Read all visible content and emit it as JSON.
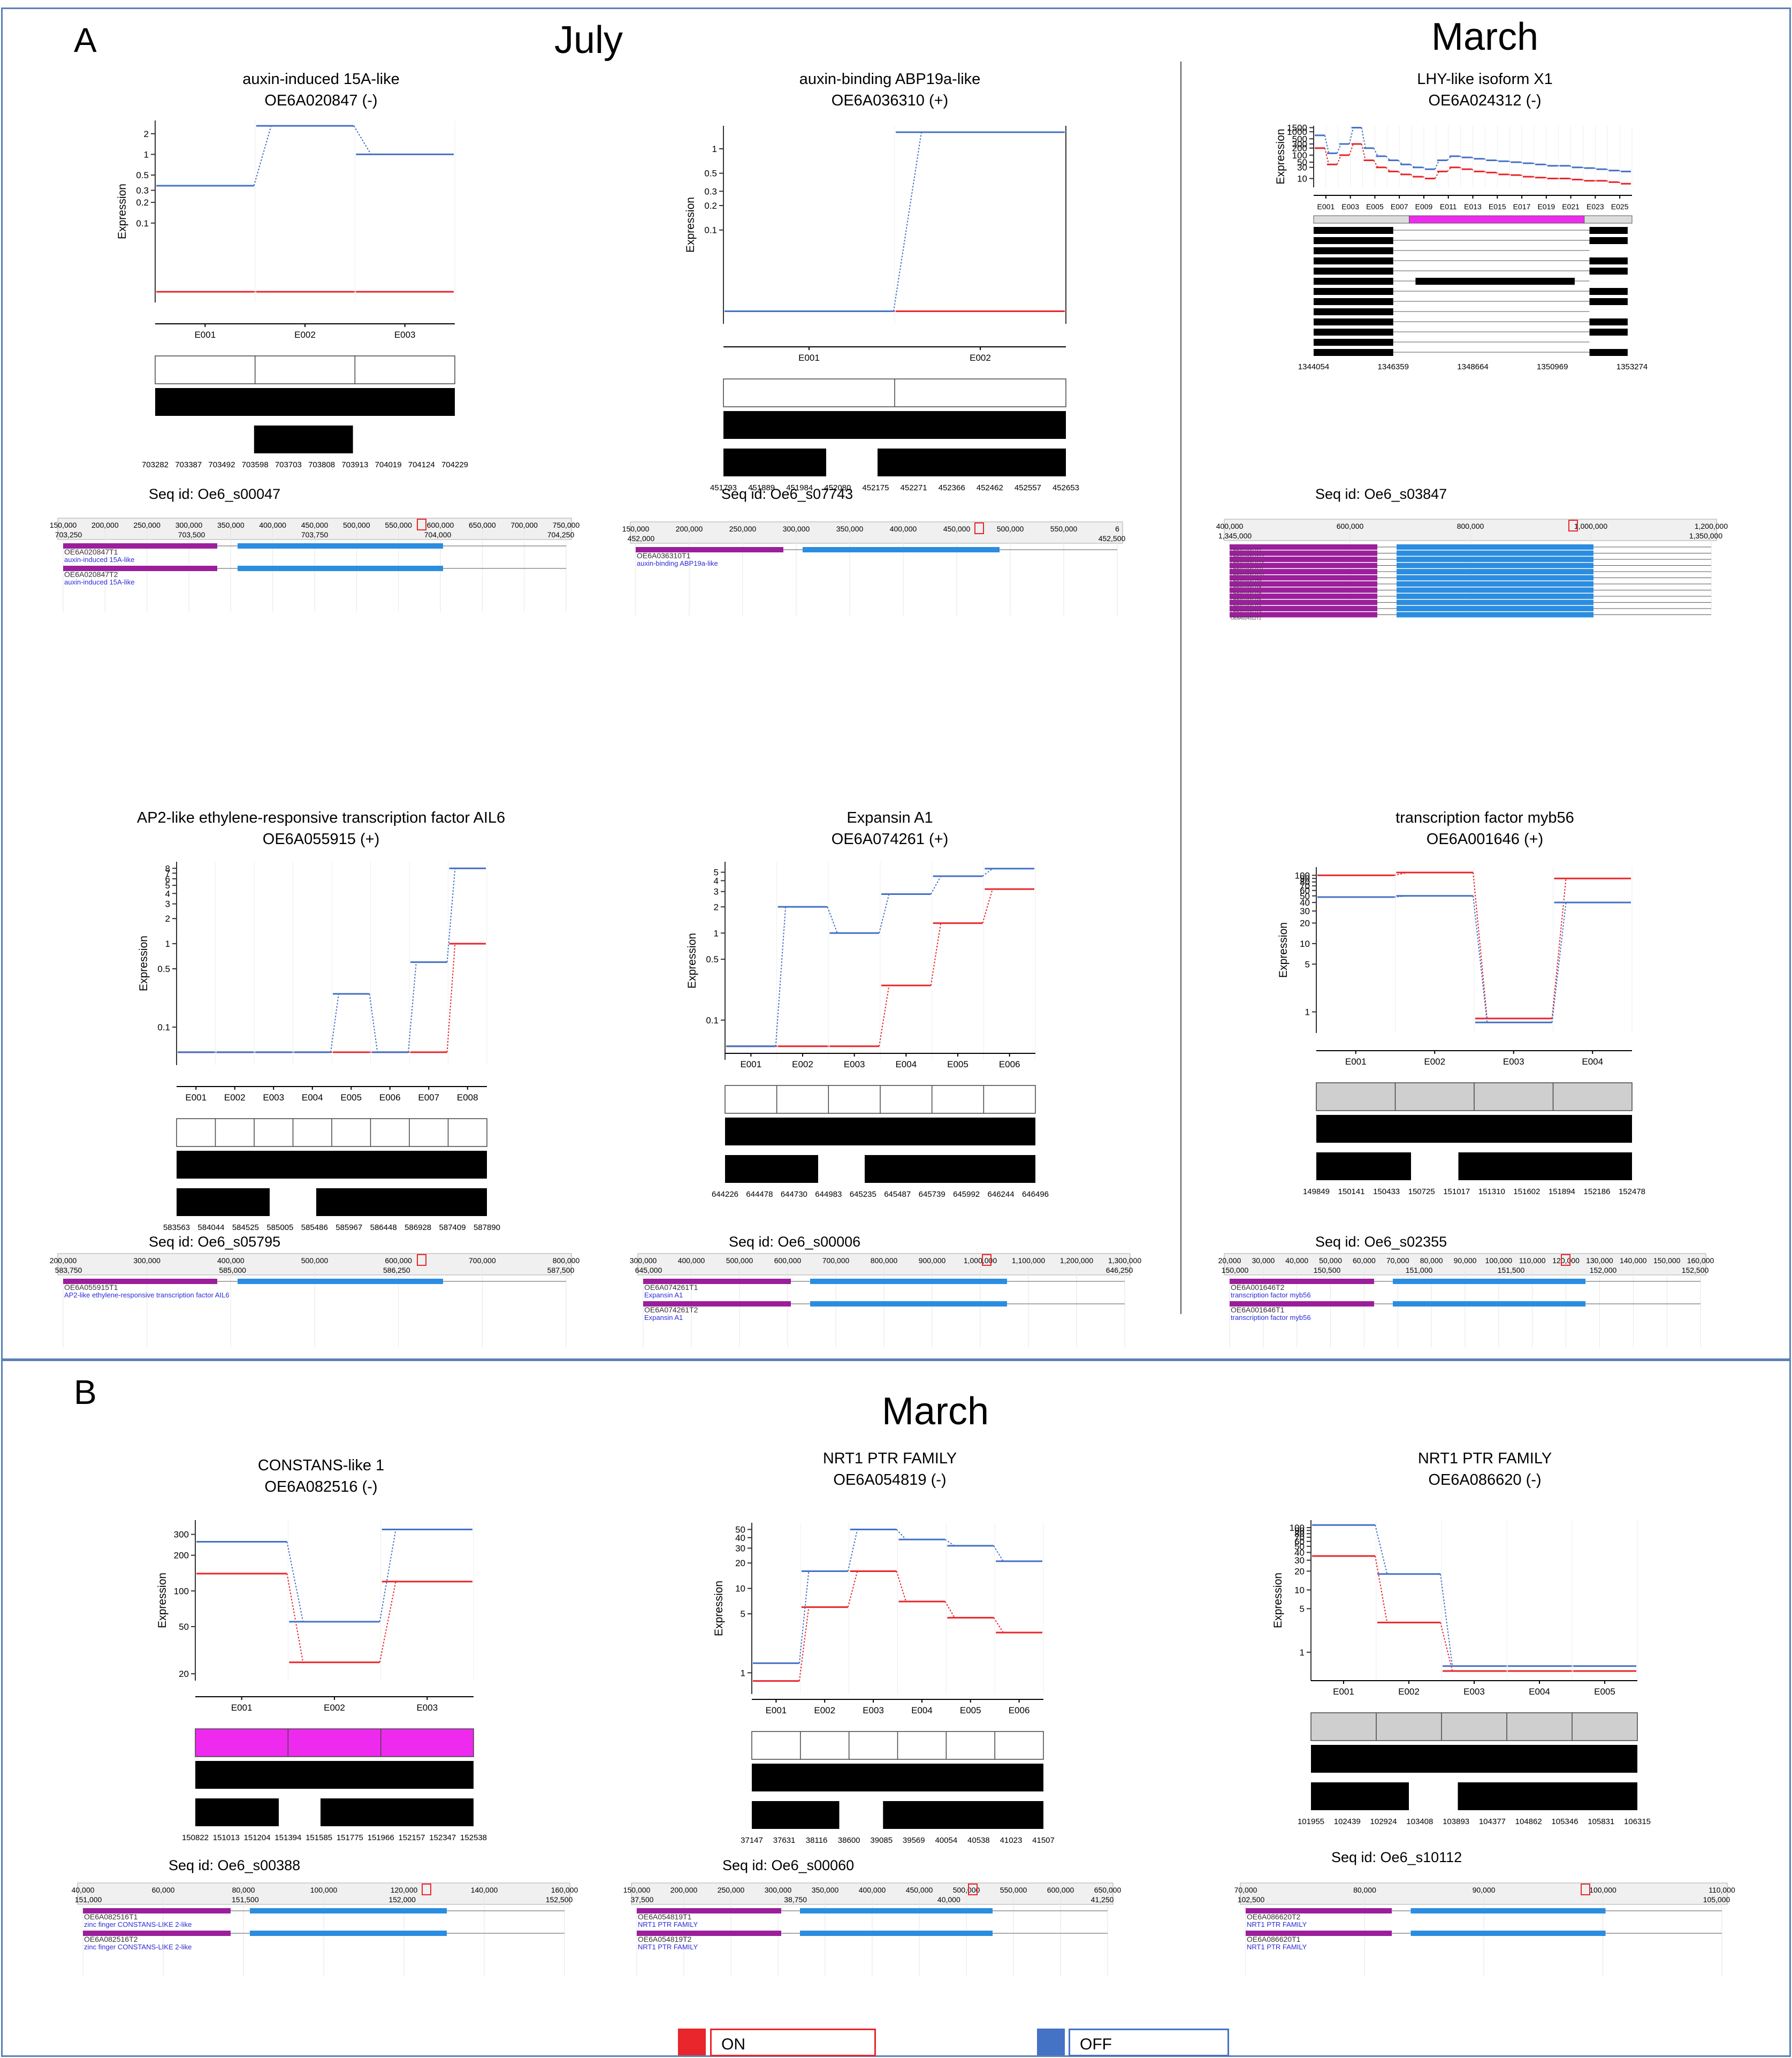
{
  "panel_a": {
    "letter": "A",
    "titles": {
      "july": "July",
      "march": "March"
    },
    "genes": [
      {
        "name": "auxin-induced 15A-like",
        "id": "OE6A020847 (-)",
        "seq": "Seq id: Oe6_s00047",
        "ticks": [
          "2",
          "1",
          "0.5",
          "0.3",
          "0.2",
          "0.1"
        ],
        "exons": [
          "E001",
          "E002",
          "E003"
        ],
        "coords": [
          "703282",
          "703387",
          "703492",
          "703598",
          "703703",
          "703808",
          "703913",
          "704019",
          "704124",
          "704229"
        ],
        "browser_ruler": [
          "150,000",
          "200,000",
          "250,000",
          "300,000",
          "350,000",
          "400,000",
          "450,000",
          "500,000",
          "550,000",
          "600,000",
          "650,000",
          "700,000",
          "750,000"
        ],
        "browser_sub": [
          "703,250",
          "703,500",
          "703,750",
          "704,000",
          "704,250"
        ],
        "tracks": [
          {
            "name": "OE6A020847T1",
            "desc": "auxin-induced 15A-like"
          },
          {
            "name": "OE6A020847T2",
            "desc": "auxin-induced 15A-like"
          }
        ]
      },
      {
        "name": "auxin-binding ABP19a-like",
        "id": "OE6A036310 (+)",
        "seq": "Seq id: Oe6_s07743",
        "ticks": [
          "1",
          "0.5",
          "0.3",
          "0.2",
          "0.1"
        ],
        "exons": [
          "E001",
          "E002"
        ],
        "coords": [
          "451793",
          "451889",
          "451984",
          "452080",
          "452175",
          "452271",
          "452366",
          "452462",
          "452557",
          "452653"
        ],
        "browser_ruler": [
          "150,000",
          "200,000",
          "250,000",
          "300,000",
          "350,000",
          "400,000",
          "450,000",
          "500,000",
          "550,000",
          "6"
        ],
        "browser_sub": [
          "452,000",
          "452,500"
        ],
        "tracks": [
          {
            "name": "OE6A036310T1",
            "desc": "auxin-binding ABP19a-like"
          }
        ]
      },
      {
        "name": "LHY-like isoform X1",
        "id": "OE6A024312 (-)",
        "seq": "Seq id: Oe6_s03847",
        "ticks": [
          "1500",
          "1000",
          "500",
          "300",
          "200",
          "100",
          "50",
          "30",
          "10"
        ],
        "exons": [
          "E001",
          "E003",
          "E005",
          "E007",
          "E009",
          "E011",
          "E013",
          "E015",
          "E017",
          "E019",
          "E021",
          "E023",
          "E025"
        ],
        "coords": [
          "1344054",
          "1346359",
          "1348664",
          "1350969",
          "1353274"
        ],
        "browser_ruler": [
          "400,000",
          "600,000",
          "800,000",
          "1,000,000",
          "1,200,000"
        ],
        "browser_sub": [
          "1,345,000",
          "1,350,000"
        ],
        "tracks": [
          {
            "name": "OE6A024312T1",
            "desc": "LHY-like isoform X1"
          },
          {
            "name": "OE6A024312T12",
            "desc": ""
          },
          {
            "name": "OE6A024312T13",
            "desc": "LHY-like isoform X1"
          },
          {
            "name": "OE6A024312T11",
            "desc": "LHY-like isoform X1"
          },
          {
            "name": "OE6A024312T10",
            "desc": "LHY-like isoform X1"
          },
          {
            "name": "OE6A024312T9",
            "desc": ""
          },
          {
            "name": "OE6A024312T8",
            "desc": ""
          },
          {
            "name": "OE6A024312T6",
            "desc": ""
          },
          {
            "name": "OE6A024312T5",
            "desc": ""
          },
          {
            "name": "OE6A024312T4",
            "desc": ""
          },
          {
            "name": "OE6A024312T3",
            "desc": ""
          },
          {
            "name": "OE6A024312T2",
            "desc": "LHY-like isoform X1"
          }
        ]
      },
      {
        "name": "AP2-like ethylene-responsive transcription factor AIL6",
        "id": "OE6A055915 (+)",
        "seq": "Seq id: Oe6_s05795",
        "ticks": [
          "8",
          "7",
          "6",
          "5",
          "4",
          "3",
          "2",
          "1",
          "0.5",
          "0.1"
        ],
        "exons": [
          "E001",
          "E002",
          "E003",
          "E004",
          "E005",
          "E006",
          "E007",
          "E008"
        ],
        "coords": [
          "583563",
          "584044",
          "584525",
          "585005",
          "585486",
          "585967",
          "586448",
          "586928",
          "587409",
          "587890"
        ],
        "browser_ruler": [
          "200,000",
          "300,000",
          "400,000",
          "500,000",
          "600,000",
          "700,000",
          "800,000"
        ],
        "browser_sub": [
          "583,750",
          "585,000",
          "586,250",
          "587,500"
        ],
        "tracks": [
          {
            "name": "OE6A055915T1",
            "desc": "AP2-like ethylene-responsive transcription factor AIL6"
          }
        ]
      },
      {
        "name": "Expansin A1",
        "id": "OE6A074261 (+)",
        "seq": "Seq id: Oe6_s00006",
        "ticks": [
          "5",
          "4",
          "3",
          "2",
          "1",
          "0.5",
          "0.1"
        ],
        "exons": [
          "E001",
          "E002",
          "E003",
          "E004",
          "E005",
          "E006"
        ],
        "coords": [
          "644226",
          "644478",
          "644730",
          "644983",
          "645235",
          "645487",
          "645739",
          "645992",
          "646244",
          "646496"
        ],
        "browser_ruler": [
          "300,000",
          "400,000",
          "500,000",
          "600,000",
          "700,000",
          "800,000",
          "900,000",
          "1,000,000",
          "1,100,000",
          "1,200,000",
          "1,300,000"
        ],
        "browser_sub": [
          "645,000",
          "646,250"
        ],
        "tracks": [
          {
            "name": "OE6A074261T1",
            "desc": "Expansin A1"
          },
          {
            "name": "OE6A074261T2",
            "desc": "Expansin A1"
          }
        ]
      },
      {
        "name": "transcription factor myb56",
        "id": "OE6A001646 (+)",
        "seq": "Seq id: Oe6_s02355",
        "ticks": [
          "100",
          "90",
          "80",
          "70",
          "60",
          "50",
          "40",
          "30",
          "20",
          "10",
          "5",
          "1"
        ],
        "exons": [
          "E001",
          "E002",
          "E003",
          "E004"
        ],
        "coords": [
          "149849",
          "150141",
          "150433",
          "150725",
          "151017",
          "151310",
          "151602",
          "151894",
          "152186",
          "152478"
        ],
        "browser_ruler": [
          "20,000",
          "30,000",
          "40,000",
          "50,000",
          "60,000",
          "70,000",
          "80,000",
          "90,000",
          "100,000",
          "110,000",
          "120,000",
          "130,000",
          "140,000",
          "150,000",
          "160,000"
        ],
        "browser_sub": [
          "150,000",
          "150,500",
          "151,000",
          "151,500",
          "152,000",
          "152,500"
        ],
        "tracks": [
          {
            "name": "OE6A001646T2",
            "desc": "transcription factor myb56"
          },
          {
            "name": "OE6A001646T1",
            "desc": "transcription factor myb56"
          }
        ]
      }
    ]
  },
  "panel_b": {
    "letter": "B",
    "title": "March",
    "genes": [
      {
        "name": "CONSTANS-like 1",
        "id": "OE6A082516 (-)",
        "seq": "Seq id: Oe6_s00388",
        "ticks": [
          "300",
          "200",
          "100",
          "50",
          "20",
          "10",
          "5",
          "1"
        ],
        "exons": [
          "E001",
          "E002",
          "E003"
        ],
        "coords": [
          "150822",
          "151013",
          "151204",
          "151394",
          "151585",
          "151775",
          "151966",
          "152157",
          "152347",
          "152538"
        ],
        "browser_ruler": [
          "40,000",
          "60,000",
          "80,000",
          "100,000",
          "120,000",
          "140,000",
          "160,000"
        ],
        "browser_sub": [
          "151,000",
          "151,500",
          "152,000",
          "152,500"
        ],
        "tracks": [
          {
            "name": "OE6A082516T1",
            "desc": "zinc finger CONSTANS-LIKE 2-like"
          },
          {
            "name": "OE6A082516T2",
            "desc": "zinc finger CONSTANS-LIKE 2-like"
          }
        ]
      },
      {
        "name": "NRT1 PTR FAMILY",
        "id": "OE6A054819 (-)",
        "seq": "Seq id: Oe6_s00060",
        "ticks": [
          "50",
          "40",
          "30",
          "20",
          "10",
          "5",
          "1"
        ],
        "exons": [
          "E001",
          "E002",
          "E003",
          "E004",
          "E005",
          "E006"
        ],
        "coords": [
          "37147",
          "37631",
          "38116",
          "38600",
          "39085",
          "39569",
          "40054",
          "40538",
          "41023",
          "41507"
        ],
        "browser_ruler": [
          "150,000",
          "200,000",
          "250,000",
          "300,000",
          "350,000",
          "400,000",
          "450,000",
          "500,000",
          "550,000",
          "600,000",
          "650,000"
        ],
        "browser_sub": [
          "37,500",
          "38,750",
          "40,000",
          "41,250"
        ],
        "tracks": [
          {
            "name": "OE6A054819T1",
            "desc": "NRT1 PTR FAMILY"
          },
          {
            "name": "OE6A054819T2",
            "desc": "NRT1 PTR FAMILY"
          }
        ]
      },
      {
        "name": "NRT1 PTR FAMILY",
        "id": "OE6A086620 (-)",
        "seq": "Seq id: Oe6_s10112",
        "ticks": [
          "100",
          "90",
          "80",
          "70",
          "60",
          "50",
          "40",
          "30",
          "20",
          "10",
          "5",
          "1"
        ],
        "exons": [
          "E001",
          "E002",
          "E003",
          "E004",
          "E005"
        ],
        "coords": [
          "101955",
          "102439",
          "102924",
          "103408",
          "103893",
          "104377",
          "104862",
          "105346",
          "105831",
          "106315"
        ],
        "browser_ruler": [
          "70,000",
          "80,000",
          "90,000",
          "100,000",
          "110,000"
        ],
        "browser_sub": [
          "102,500",
          "105,000"
        ],
        "tracks": [
          {
            "name": "OE6A086620T2",
            "desc": "NRT1 PTR FAMILY"
          },
          {
            "name": "OE6A086620T1",
            "desc": "NRT1 PTR FAMILY"
          }
        ]
      }
    ]
  },
  "y_axis_label": "Expression",
  "legend": {
    "on_label": "ON",
    "off_label": "OFF"
  },
  "colors": {
    "on": "#e8262b",
    "off": "#4472c4",
    "browser_blue": "#2b8de0",
    "browser_purple": "#9b1f9b",
    "magenta": "#ee2aee",
    "frame": "#5b7fb5"
  },
  "chart_data": [
    {
      "type": "line",
      "gene": "OE6A020847",
      "scale": "log",
      "categories": [
        "E001",
        "E002",
        "E003"
      ],
      "series": [
        {
          "name": "ON",
          "values": [
            0.01,
            0.01,
            0.01
          ]
        },
        {
          "name": "OFF",
          "values": [
            0.35,
            2.6,
            1.0
          ]
        }
      ]
    },
    {
      "type": "line",
      "gene": "OE6A036310",
      "scale": "log",
      "categories": [
        "E001",
        "E002"
      ],
      "series": [
        {
          "name": "ON",
          "values": [
            0.01,
            0.01
          ]
        },
        {
          "name": "OFF",
          "values": [
            0.01,
            1.6
          ]
        }
      ]
    },
    {
      "type": "line",
      "gene": "OE6A024312",
      "scale": "log",
      "categories": [
        "E001",
        "E002",
        "E003",
        "E004",
        "E005",
        "E006",
        "E007",
        "E008",
        "E009",
        "E010",
        "E011",
        "E012",
        "E013",
        "E014",
        "E015",
        "E016",
        "E017",
        "E018",
        "E019",
        "E020",
        "E021",
        "E022",
        "E023",
        "E024",
        "E025",
        "E026"
      ],
      "series": [
        {
          "name": "ON",
          "values": [
            200,
            40,
            100,
            300,
            60,
            30,
            20,
            15,
            12,
            10,
            20,
            30,
            25,
            20,
            18,
            15,
            14,
            12,
            11,
            10,
            10,
            9,
            8,
            8,
            7,
            6
          ]
        },
        {
          "name": "OFF",
          "values": [
            700,
            120,
            300,
            1500,
            200,
            90,
            60,
            40,
            30,
            25,
            60,
            90,
            80,
            70,
            60,
            55,
            50,
            45,
            40,
            35,
            35,
            30,
            28,
            25,
            22,
            20
          ]
        }
      ]
    },
    {
      "type": "line",
      "gene": "OE6A055915",
      "scale": "log",
      "categories": [
        "E001",
        "E002",
        "E003",
        "E004",
        "E005",
        "E006",
        "E007",
        "E008"
      ],
      "series": [
        {
          "name": "ON",
          "values": [
            0.05,
            0.05,
            0.05,
            0.05,
            0.05,
            0.05,
            0.05,
            1.0
          ]
        },
        {
          "name": "OFF",
          "values": [
            0.05,
            0.05,
            0.05,
            0.05,
            0.25,
            0.05,
            0.6,
            8.0
          ]
        }
      ]
    },
    {
      "type": "line",
      "gene": "OE6A074261",
      "scale": "log",
      "categories": [
        "E001",
        "E002",
        "E003",
        "E004",
        "E005",
        "E006"
      ],
      "series": [
        {
          "name": "ON",
          "values": [
            0.05,
            0.05,
            0.05,
            0.25,
            1.3,
            3.2
          ]
        },
        {
          "name": "OFF",
          "values": [
            0.05,
            2.0,
            1.0,
            2.8,
            4.5,
            5.5
          ]
        }
      ]
    },
    {
      "type": "line",
      "gene": "OE6A001646",
      "scale": "log",
      "categories": [
        "E001",
        "E002",
        "E003",
        "E004"
      ],
      "series": [
        {
          "name": "ON",
          "values": [
            100,
            110,
            0.8,
            90
          ]
        },
        {
          "name": "OFF",
          "values": [
            48,
            50,
            0.7,
            40
          ]
        }
      ]
    },
    {
      "type": "line",
      "gene": "OE6A082516",
      "scale": "log",
      "categories": [
        "E001",
        "E002",
        "E003"
      ],
      "series": [
        {
          "name": "ON",
          "values": [
            140,
            25,
            120
          ]
        },
        {
          "name": "OFF",
          "values": [
            260,
            55,
            330
          ]
        }
      ]
    },
    {
      "type": "line",
      "gene": "OE6A054819",
      "scale": "log",
      "categories": [
        "E001",
        "E002",
        "E003",
        "E004",
        "E005",
        "E006"
      ],
      "series": [
        {
          "name": "ON",
          "values": [
            0.8,
            6,
            16,
            7,
            4.5,
            3
          ]
        },
        {
          "name": "OFF",
          "values": [
            1.3,
            16,
            50,
            38,
            32,
            21
          ]
        }
      ]
    },
    {
      "type": "line",
      "gene": "OE6A086620",
      "scale": "log",
      "categories": [
        "E001",
        "E002",
        "E003",
        "E004",
        "E005"
      ],
      "series": [
        {
          "name": "ON",
          "values": [
            35,
            3,
            0.5,
            0.5,
            0.5
          ]
        },
        {
          "name": "OFF",
          "values": [
            110,
            18,
            0.6,
            0.6,
            0.6
          ]
        }
      ]
    }
  ]
}
